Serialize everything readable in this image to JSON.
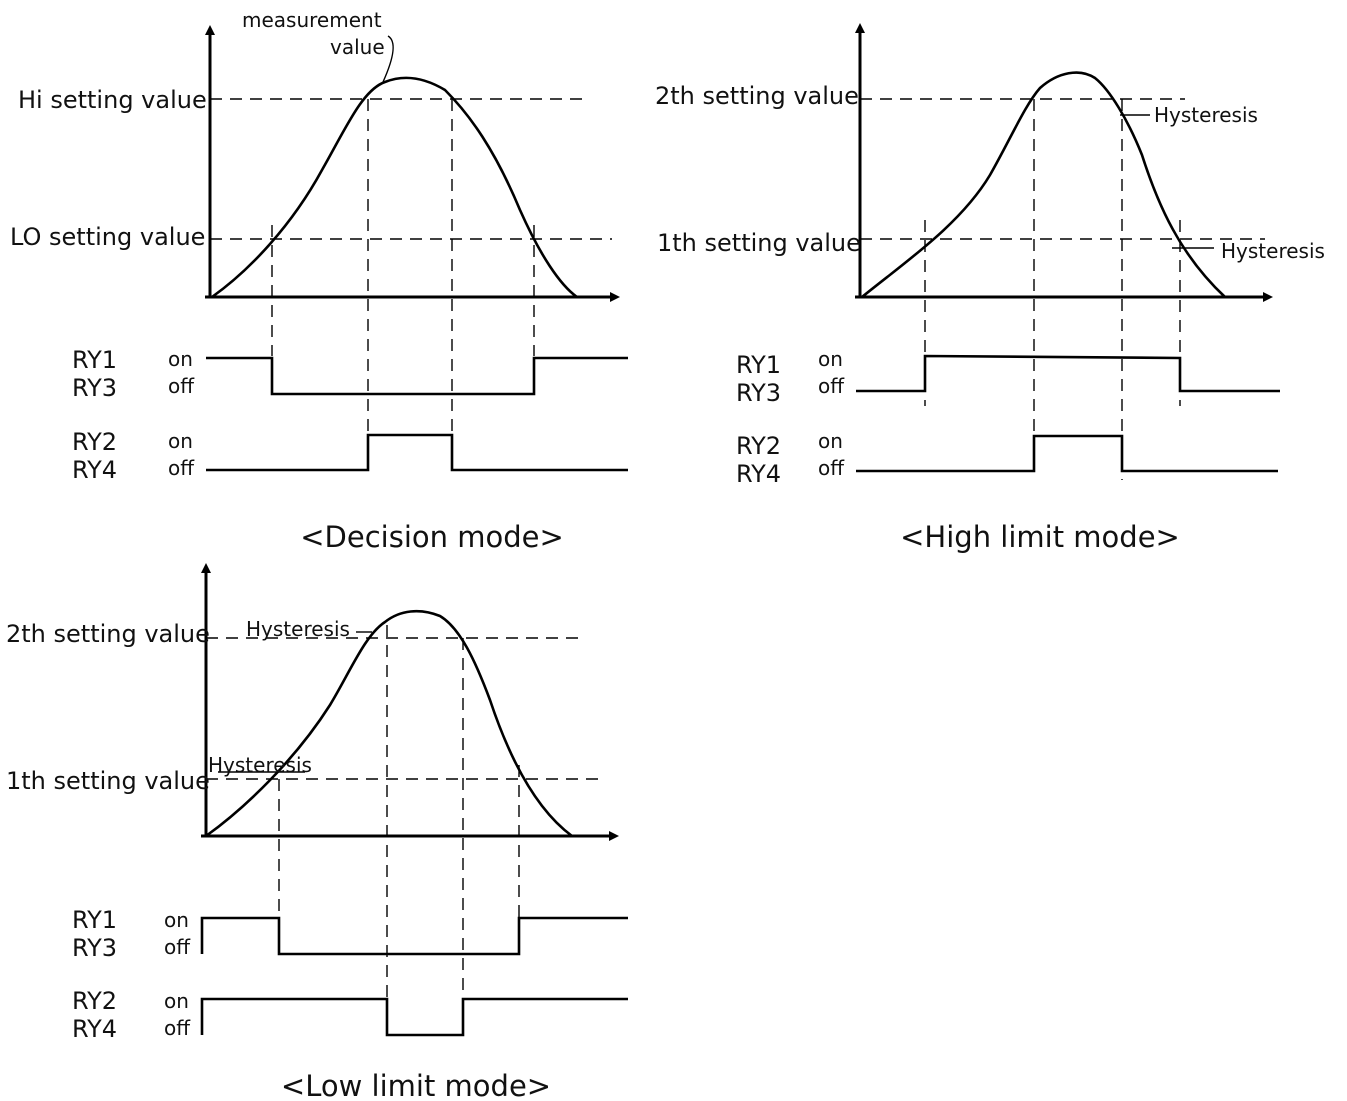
{
  "diagrams": {
    "decision": {
      "title": "<Decision mode>",
      "measurement_label_1": "measurement",
      "measurement_label_2": "value",
      "hi_label": "Hi setting value",
      "lo_label": "LO setting value",
      "ry1": "RY1",
      "ry3": "RY3",
      "ry2": "RY2",
      "ry4": "RY4",
      "on": "on",
      "off": "off"
    },
    "high_limit": {
      "title": "<High limit mode>",
      "second_label": "2th setting value",
      "first_label": "1th setting value",
      "hysteresis_upper": "Hysteresis",
      "hysteresis_lower": "Hysteresis",
      "ry1": "RY1",
      "ry3": "RY3",
      "ry2": "RY2",
      "ry4": "RY4",
      "on": "on",
      "off": "off"
    },
    "low_limit": {
      "title": "<Low limit mode>",
      "second_label": "2th setting value",
      "first_label": "1th setting value",
      "hysteresis_upper": "Hysteresis",
      "hysteresis_lower": "Hysteresis",
      "ry1": "RY1",
      "ry3": "RY3",
      "ry2": "RY2",
      "ry4": "RY4",
      "on": "on",
      "off": "off"
    }
  }
}
